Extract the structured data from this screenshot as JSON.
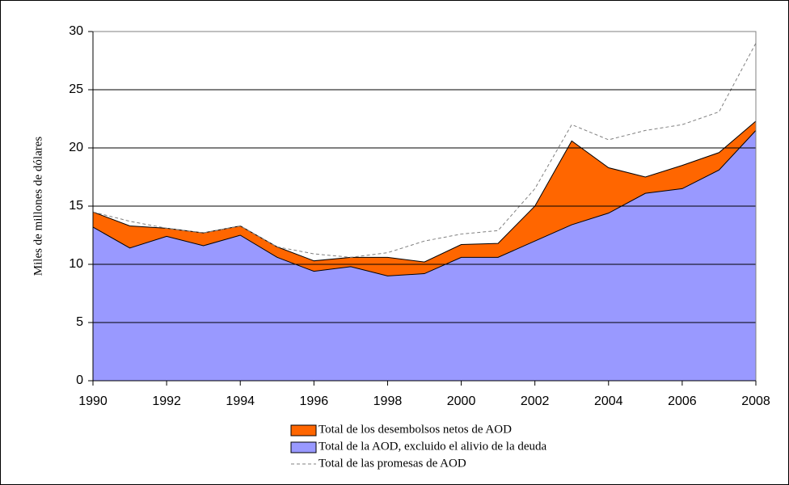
{
  "chart_data": {
    "type": "area",
    "y_label": "Miles de millones de dólares",
    "x": [
      1990,
      1991,
      1992,
      1993,
      1994,
      1995,
      1996,
      1997,
      1998,
      1999,
      2000,
      2001,
      2002,
      2003,
      2004,
      2005,
      2006,
      2007,
      2008
    ],
    "xlim": [
      1990,
      2008
    ],
    "xticks": [
      1990,
      1992,
      1994,
      1996,
      1998,
      2000,
      2002,
      2004,
      2006,
      2008
    ],
    "ylim": [
      0,
      30
    ],
    "yticks": [
      0,
      5,
      10,
      15,
      20,
      25,
      30
    ],
    "grid": true,
    "series": [
      {
        "name": "Total de los desembolsos netos de AOD",
        "color": "#ff6600",
        "kind": "area",
        "values": [
          14.5,
          13.3,
          13.1,
          12.7,
          13.3,
          11.5,
          10.3,
          10.6,
          10.6,
          10.2,
          11.7,
          11.8,
          15.0,
          20.6,
          18.3,
          17.5,
          18.5,
          19.6,
          22.3
        ]
      },
      {
        "name": "Total de la AOD, excluido el alivio de la deuda",
        "color": "#9999ff",
        "kind": "area",
        "values": [
          13.2,
          11.4,
          12.4,
          11.6,
          12.5,
          10.6,
          9.4,
          9.8,
          9.0,
          9.2,
          10.6,
          10.6,
          12.0,
          13.4,
          14.4,
          16.1,
          16.5,
          18.1,
          21.5
        ]
      },
      {
        "name": "Total de las promesas de AOD",
        "color": "#808080",
        "kind": "dashed-line",
        "values": [
          14.5,
          13.7,
          13.1,
          12.7,
          13.3,
          11.5,
          10.9,
          10.6,
          11.0,
          12.0,
          12.6,
          12.9,
          16.5,
          22.0,
          20.7,
          21.5,
          22.0,
          23.1,
          29.0
        ]
      }
    ]
  }
}
